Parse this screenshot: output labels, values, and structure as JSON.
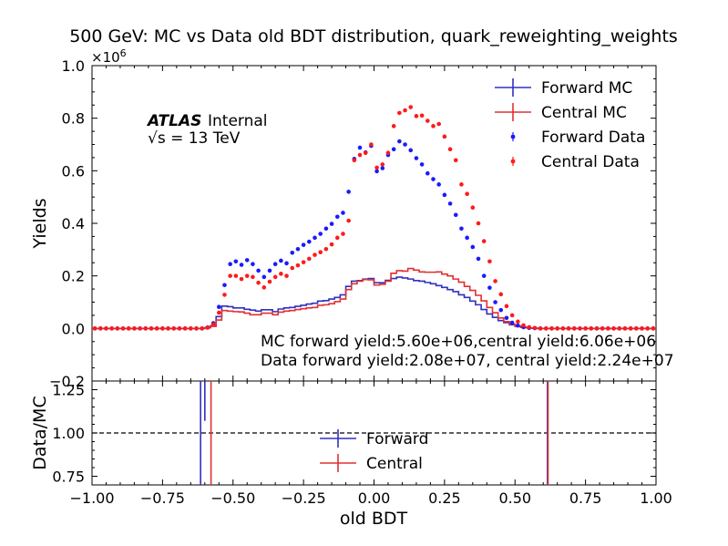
{
  "chart_data": {
    "type": "line",
    "title": "500 GeV: MC vs Data old BDT distribution, quark_reweighting_weights",
    "xlabel": "old BDT",
    "ylabel": "Yields",
    "ratio_ylabel": "Data/MC",
    "y_multiplier": "×10",
    "y_multiplier_exp": "6",
    "xlim": [
      -1.0,
      1.0
    ],
    "ylim": [
      -0.2,
      1.0
    ],
    "ratio_ylim": [
      0.7,
      1.3
    ],
    "x_ticks": [
      "−1.00",
      "−0.75",
      "−0.50",
      "−0.25",
      "0.00",
      "0.25",
      "0.50",
      "0.75",
      "1.00"
    ],
    "y_ticks": [
      "−0.2",
      "0.0",
      "0.2",
      "0.4",
      "0.6",
      "0.8",
      "1.0"
    ],
    "ratio_y_ticks": [
      "0.75",
      "1.00",
      "1.25"
    ],
    "atlas_label": "ATLAS",
    "atlas_sublabel": "Internal",
    "energy_label": "√s = 13 TeV",
    "annotation_mc": "MC forward yield:5.60e+06,central yield:6.06e+06",
    "annotation_data": "Data forward yield:2.08e+07, central yield:2.24e+07",
    "legend_main": [
      "Forward MC",
      "Central MC",
      "Forward Data",
      "Central Data"
    ],
    "legend_ratio": [
      "Forward",
      "Central"
    ],
    "colors": {
      "forward": "#1a1aff",
      "central": "#ff1a1a",
      "forward_line": "#3030c0",
      "central_line": "#e03030"
    },
    "bin_width": 0.02,
    "x": [
      -0.99,
      -0.97,
      -0.95,
      -0.93,
      -0.91,
      -0.89,
      -0.87,
      -0.85,
      -0.83,
      -0.81,
      -0.79,
      -0.77,
      -0.75,
      -0.73,
      -0.71,
      -0.69,
      -0.67,
      -0.65,
      -0.63,
      -0.61,
      -0.59,
      -0.57,
      -0.55,
      -0.53,
      -0.51,
      -0.49,
      -0.47,
      -0.45,
      -0.43,
      -0.41,
      -0.39,
      -0.37,
      -0.35,
      -0.33,
      -0.31,
      -0.29,
      -0.27,
      -0.25,
      -0.23,
      -0.21,
      -0.19,
      -0.17,
      -0.15,
      -0.13,
      -0.11,
      -0.09,
      -0.07,
      -0.05,
      -0.03,
      -0.01,
      0.01,
      0.03,
      0.05,
      0.07,
      0.09,
      0.11,
      0.13,
      0.15,
      0.17,
      0.19,
      0.21,
      0.23,
      0.25,
      0.27,
      0.29,
      0.31,
      0.33,
      0.35,
      0.37,
      0.39,
      0.41,
      0.43,
      0.45,
      0.47,
      0.49,
      0.51,
      0.53,
      0.55,
      0.57,
      0.59,
      0.61,
      0.63,
      0.65,
      0.67,
      0.69,
      0.71,
      0.73,
      0.75,
      0.77,
      0.79,
      0.81,
      0.83,
      0.85,
      0.87,
      0.89,
      0.91,
      0.93,
      0.95,
      0.97,
      0.99
    ],
    "series": [
      {
        "name": "Forward MC",
        "kind": "step",
        "values": [
          0,
          0,
          0,
          0,
          0,
          0,
          0,
          0,
          0,
          0,
          0,
          0,
          0,
          0,
          0,
          0,
          0,
          0,
          0,
          0,
          0.003,
          0.01,
          0.045,
          0.085,
          0.083,
          0.078,
          0.078,
          0.073,
          0.07,
          0.066,
          0.071,
          0.071,
          0.064,
          0.074,
          0.078,
          0.08,
          0.084,
          0.088,
          0.093,
          0.096,
          0.104,
          0.106,
          0.112,
          0.118,
          0.128,
          0.16,
          0.18,
          0.182,
          0.188,
          0.19,
          0.174,
          0.174,
          0.183,
          0.19,
          0.195,
          0.192,
          0.188,
          0.182,
          0.18,
          0.175,
          0.17,
          0.163,
          0.156,
          0.148,
          0.14,
          0.128,
          0.118,
          0.104,
          0.09,
          0.072,
          0.055,
          0.042,
          0.03,
          0.022,
          0.014,
          0.008,
          0.004,
          0.002,
          0.001,
          0,
          0,
          0,
          0,
          0,
          0,
          0,
          0,
          0,
          0,
          0,
          0,
          0,
          0,
          0,
          0,
          0,
          0,
          0,
          0,
          0
        ]
      },
      {
        "name": "Central MC",
        "kind": "step",
        "values": [
          0,
          0,
          0,
          0,
          0,
          0,
          0,
          0,
          0,
          0,
          0,
          0,
          0,
          0,
          0,
          0,
          0,
          0,
          0,
          0,
          0.002,
          0.008,
          0.032,
          0.068,
          0.066,
          0.064,
          0.063,
          0.058,
          0.052,
          0.052,
          0.058,
          0.058,
          0.052,
          0.062,
          0.066,
          0.068,
          0.072,
          0.075,
          0.078,
          0.08,
          0.088,
          0.09,
          0.094,
          0.102,
          0.112,
          0.148,
          0.17,
          0.18,
          0.186,
          0.185,
          0.165,
          0.168,
          0.18,
          0.21,
          0.22,
          0.218,
          0.228,
          0.222,
          0.215,
          0.214,
          0.214,
          0.215,
          0.207,
          0.2,
          0.188,
          0.176,
          0.16,
          0.145,
          0.126,
          0.105,
          0.08,
          0.06,
          0.04,
          0.026,
          0.016,
          0.01,
          0.005,
          0.002,
          0.001,
          0,
          0,
          0,
          0,
          0,
          0,
          0,
          0,
          0,
          0,
          0,
          0,
          0,
          0,
          0,
          0,
          0,
          0,
          0,
          0,
          0
        ]
      },
      {
        "name": "Forward Data",
        "kind": "points",
        "values": [
          0,
          0,
          0,
          0,
          0,
          0,
          0,
          0,
          0,
          0,
          0,
          0,
          0,
          0,
          0,
          0,
          0,
          0,
          0,
          0,
          0.004,
          0.02,
          0.082,
          0.165,
          0.245,
          0.255,
          0.242,
          0.26,
          0.245,
          0.22,
          0.196,
          0.22,
          0.245,
          0.258,
          0.248,
          0.288,
          0.302,
          0.318,
          0.33,
          0.345,
          0.36,
          0.38,
          0.398,
          0.425,
          0.44,
          0.52,
          0.645,
          0.688,
          0.67,
          0.695,
          0.598,
          0.61,
          0.66,
          0.682,
          0.712,
          0.7,
          0.678,
          0.648,
          0.624,
          0.59,
          0.568,
          0.548,
          0.508,
          0.475,
          0.432,
          0.38,
          0.345,
          0.31,
          0.265,
          0.2,
          0.155,
          0.1,
          0.07,
          0.04,
          0.022,
          0.011,
          0.005,
          0.002,
          0.001,
          0,
          0,
          0,
          0,
          0,
          0,
          0,
          0,
          0,
          0,
          0,
          0,
          0,
          0,
          0,
          0,
          0,
          0,
          0,
          0,
          0
        ]
      },
      {
        "name": "Central Data",
        "kind": "points",
        "values": [
          0,
          0,
          0,
          0,
          0,
          0,
          0,
          0,
          0,
          0,
          0,
          0,
          0,
          0,
          0,
          0,
          0,
          0,
          0,
          0,
          0.003,
          0.015,
          0.06,
          0.128,
          0.2,
          0.2,
          0.188,
          0.2,
          0.196,
          0.174,
          0.156,
          0.178,
          0.196,
          0.208,
          0.2,
          0.23,
          0.24,
          0.252,
          0.265,
          0.28,
          0.29,
          0.302,
          0.32,
          0.345,
          0.36,
          0.41,
          0.64,
          0.66,
          0.668,
          0.7,
          0.612,
          0.624,
          0.668,
          0.77,
          0.82,
          0.83,
          0.842,
          0.808,
          0.81,
          0.79,
          0.77,
          0.778,
          0.73,
          0.682,
          0.64,
          0.548,
          0.512,
          0.46,
          0.4,
          0.332,
          0.255,
          0.18,
          0.13,
          0.085,
          0.05,
          0.026,
          0.012,
          0.005,
          0.002,
          0,
          0,
          0,
          0,
          0,
          0,
          0,
          0,
          0,
          0,
          0,
          0,
          0,
          0,
          0,
          0,
          0,
          0,
          0,
          0,
          0
        ]
      }
    ],
    "ratio_lines": [
      {
        "name": "Forward",
        "x": -0.615,
        "top": 1.3,
        "bottom": 0.7
      },
      {
        "name": "Forward",
        "x": -0.6,
        "top": 1.3,
        "bottom": 1.07
      },
      {
        "name": "Central",
        "x": -0.578,
        "top": 1.3,
        "bottom": 0.7
      },
      {
        "name": "Forward",
        "x": 0.615,
        "top": 1.3,
        "bottom": 0.7
      },
      {
        "name": "Central",
        "x": 0.617,
        "top": 1.3,
        "bottom": 0.7
      }
    ],
    "ratio_reference": 1.0
  }
}
